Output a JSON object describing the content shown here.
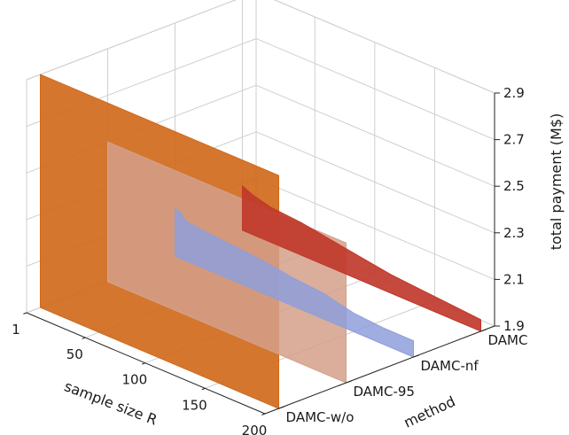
{
  "chart_data": {
    "type": "area",
    "projection": "3d",
    "x_axis": {
      "label": "sample size R",
      "ticks": [
        1,
        50,
        100,
        150,
        200
      ],
      "range": [
        1,
        200
      ]
    },
    "y_axis": {
      "label": "method",
      "categories": [
        "DAMC",
        "DAMC-nf",
        "DAMC-95",
        "DAMC-w/o"
      ]
    },
    "z_axis": {
      "label": "total payment (M$)",
      "ticks": [
        1.9,
        2.1,
        2.3,
        2.5,
        2.7,
        2.9
      ],
      "range": [
        1.9,
        2.9
      ]
    },
    "grid": true,
    "series": [
      {
        "name": "DAMC",
        "color": "#c0392b",
        "x": [
          1,
          10,
          25,
          50,
          75,
          100,
          125,
          150,
          175,
          200
        ],
        "values": [
          2.09,
          2.07,
          2.05,
          2.04,
          2.02,
          2.0,
          1.98,
          1.97,
          1.96,
          1.95
        ]
      },
      {
        "name": "DAMC-nf",
        "color": "#8e9fdb",
        "x": [
          1,
          5,
          10,
          25,
          50,
          75,
          100,
          125,
          150,
          175,
          200
        ],
        "values": [
          2.1,
          2.1,
          2.07,
          2.06,
          2.05,
          2.04,
          2.02,
          2.01,
          1.98,
          1.97,
          1.97
        ]
      },
      {
        "name": "DAMC-95",
        "color": "#d4a08a",
        "x": [
          1,
          200
        ],
        "values": [
          2.5,
          2.5
        ]
      },
      {
        "name": "DAMC-w/o",
        "color": "#d06a1c",
        "x": [
          1,
          200
        ],
        "values": [
          2.9,
          2.9
        ]
      }
    ]
  }
}
